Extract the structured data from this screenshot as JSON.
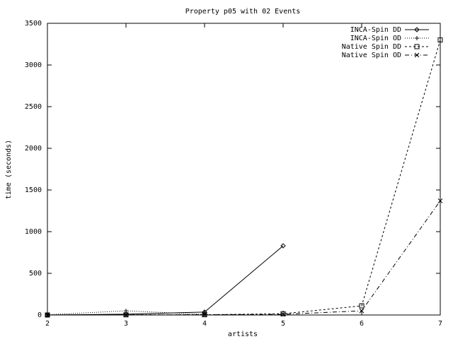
{
  "chart_data": {
    "type": "line",
    "title": "Property p05 with 02 Events",
    "x_label": "artists",
    "y_label": "time (seconds)",
    "x": [
      2,
      3,
      4,
      5,
      6,
      7
    ],
    "series": [
      {
        "name": "INCA-Spin DD",
        "color": "#000000",
        "dash": "none",
        "marker": "diamond",
        "values": [
          0,
          10,
          35,
          830,
          null,
          null
        ]
      },
      {
        "name": "INCA-Spin OD",
        "color": "#000000",
        "dash": "1,2",
        "marker": "plus",
        "values": [
          3,
          50,
          8,
          null,
          null,
          null
        ]
      },
      {
        "name": "Native Spin DD",
        "color": "#000000",
        "dash": "3,3",
        "marker": "square",
        "values": [
          0,
          2,
          3,
          15,
          110,
          3300
        ]
      },
      {
        "name": "Native Spin OD",
        "color": "#000000",
        "dash": "6,3,1,3",
        "marker": "cross",
        "values": [
          0,
          2,
          3,
          8,
          50,
          1370
        ]
      }
    ],
    "xlim": [
      2,
      7
    ],
    "xticks": [
      2,
      3,
      4,
      5,
      6,
      7
    ],
    "ylim": [
      0,
      3500
    ],
    "yticks": [
      0,
      500,
      1000,
      1500,
      2000,
      2500,
      3000,
      3500
    ],
    "legend": "top-right"
  }
}
